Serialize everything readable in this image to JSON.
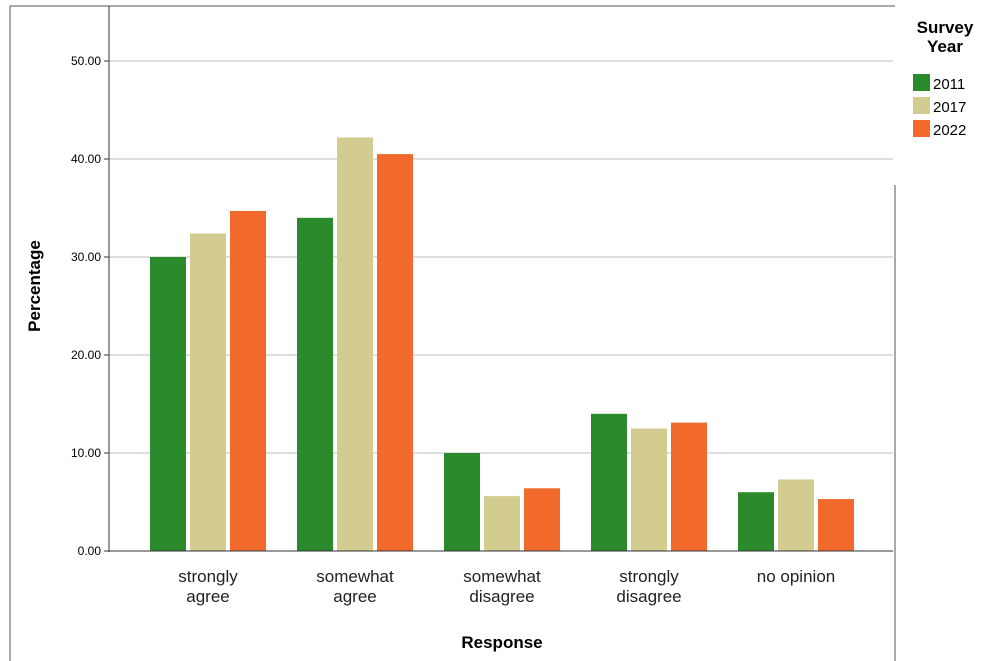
{
  "chart_data": {
    "type": "bar",
    "xlabel": "Response",
    "ylabel": "Percentage",
    "categories": [
      [
        "strongly",
        "agree"
      ],
      [
        "somewhat",
        "agree"
      ],
      [
        "somewhat",
        "disagree"
      ],
      [
        "strongly",
        "disagree"
      ],
      [
        "no opinion"
      ]
    ],
    "series": [
      {
        "name": "2011",
        "color": "#2b8a2b",
        "values": [
          30.0,
          34.0,
          10.0,
          14.0,
          6.0
        ]
      },
      {
        "name": "2017",
        "color": "#d3cc90",
        "values": [
          32.4,
          42.2,
          5.6,
          12.5,
          7.3
        ]
      },
      {
        "name": "2022",
        "color": "#f26a2b",
        "values": [
          34.7,
          40.5,
          6.4,
          13.1,
          5.3
        ]
      }
    ],
    "ylim": [
      0,
      55
    ],
    "yticks": [
      "0.00",
      "10.00",
      "20.00",
      "30.00",
      "40.00",
      "50.00"
    ],
    "ytick_values": [
      0,
      10,
      20,
      30,
      40,
      50
    ],
    "grid": true,
    "legend": {
      "title": [
        "Survey",
        "Year"
      ],
      "placement": "right"
    }
  }
}
